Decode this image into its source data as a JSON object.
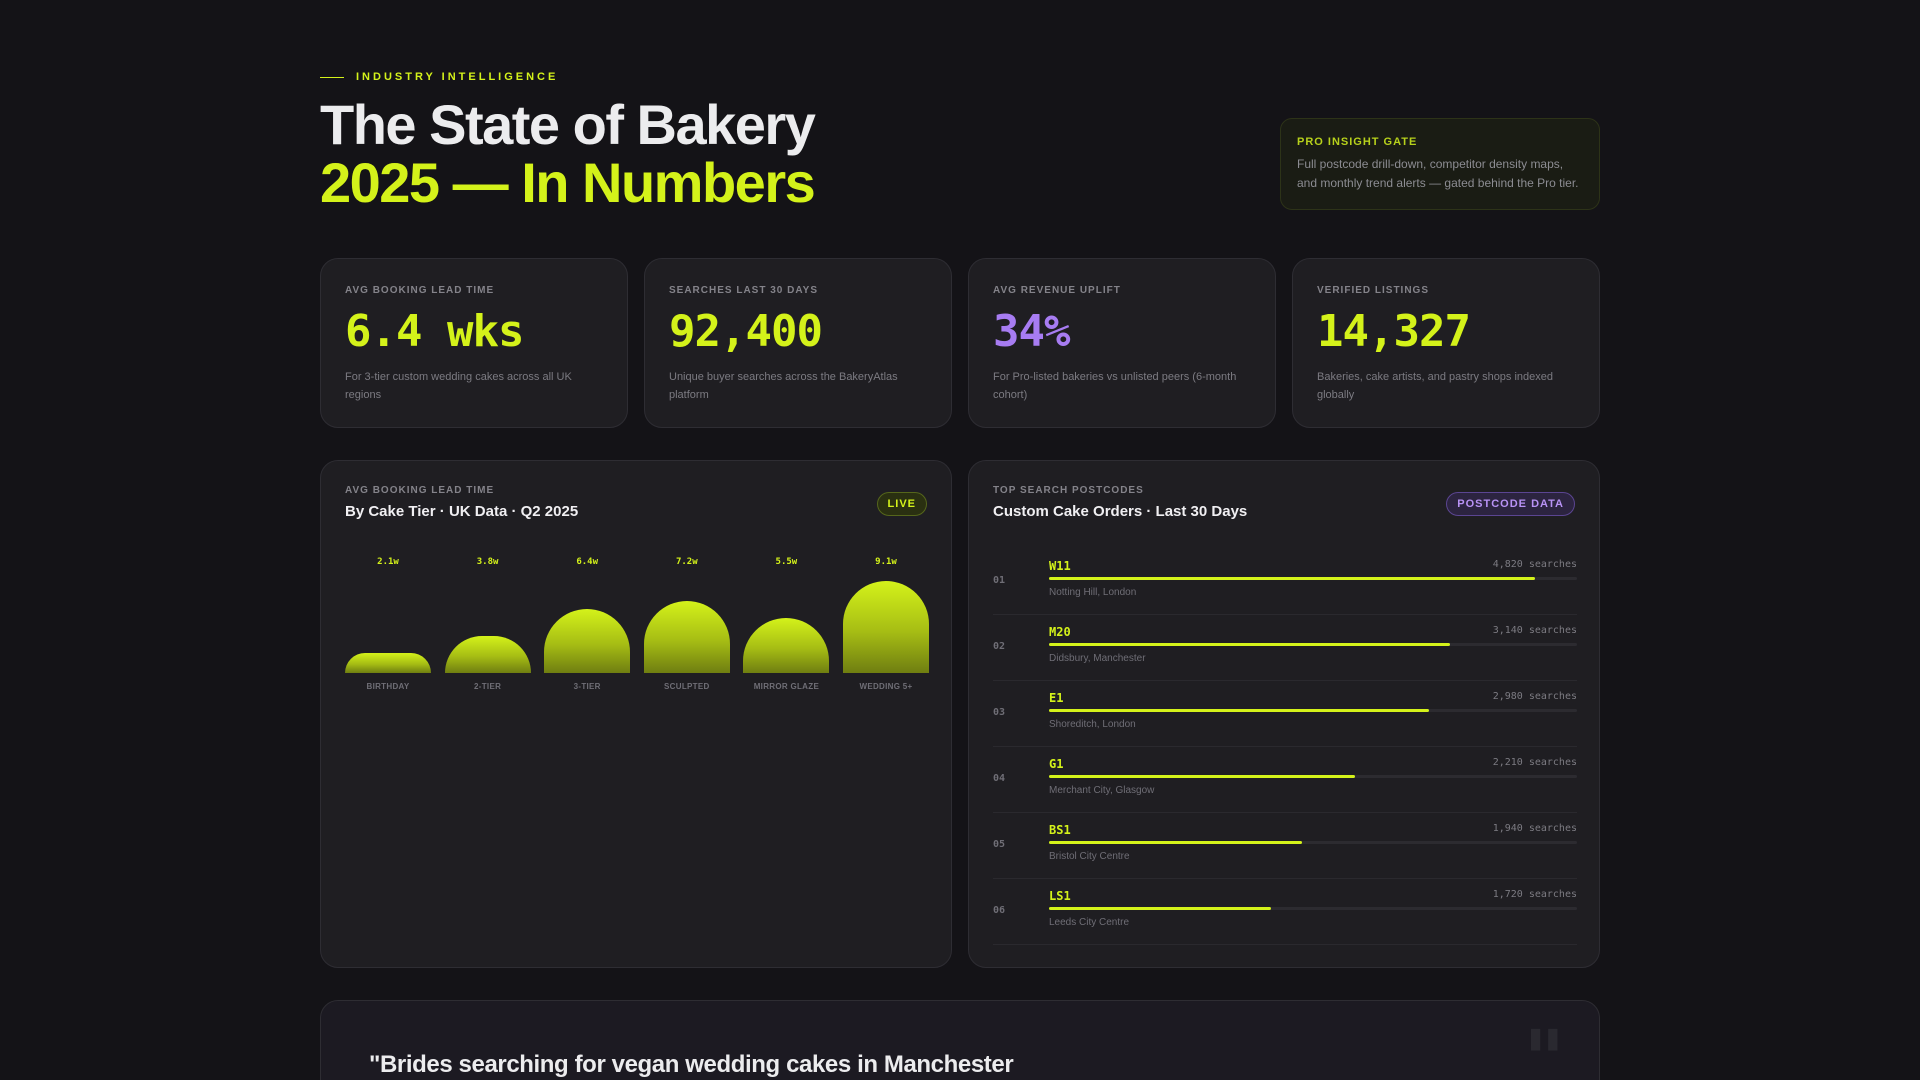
{
  "header": {
    "eyebrow": "INDUSTRY INTELLIGENCE",
    "title_line1": "The State of Bakery",
    "title_line2": "2025 — In Numbers"
  },
  "gate": {
    "title": "PRO INSIGHT GATE",
    "text": "Full postcode drill-down, competitor density maps, and monthly trend alerts — gated behind the Pro tier."
  },
  "stats": [
    {
      "label": "AVG BOOKING LEAD TIME",
      "value": "6.4 wks",
      "desc": "For 3-tier custom wedding cakes across all UK regions"
    },
    {
      "label": "SEARCHES LAST 30 DAYS",
      "value": "92,400",
      "desc": "Unique buyer searches across the BakeryAtlas platform"
    },
    {
      "label": "AVG REVENUE UPLIFT",
      "value": "34%",
      "desc": "For Pro-listed bakeries vs unlisted peers (6-month cohort)"
    },
    {
      "label": "VERIFIED LISTINGS",
      "value": "14,327",
      "desc": "Bakeries, cake artists, and pastry shops indexed globally"
    }
  ],
  "lead_panel": {
    "label": "AVG BOOKING LEAD TIME",
    "title": "By Cake Tier · UK Data · Q2 2025",
    "badge": "LIVE"
  },
  "chart_data": {
    "type": "bar",
    "categories": [
      "BIRTHDAY",
      "2-TIER",
      "3-TIER",
      "SCULPTED",
      "MIRROR GLAZE",
      "WEDDING 5+"
    ],
    "values": [
      2.1,
      3.8,
      6.4,
      7.2,
      5.5,
      9.1
    ],
    "value_labels": [
      "2.1w",
      "3.8w",
      "6.4w",
      "7.2w",
      "5.5w",
      "9.1w"
    ],
    "title": "",
    "xlabel": "",
    "ylabel": "",
    "ylim": [
      0,
      9.1
    ]
  },
  "postcode_panel": {
    "label": "TOP SEARCH POSTCODES",
    "title": "Custom Cake Orders · Last 30 Days",
    "badge": "POSTCODE DATA",
    "rows": [
      {
        "rank": "01",
        "code": "W11",
        "count": "4,820 searches",
        "area": "Notting Hill, London",
        "share": 0.92
      },
      {
        "rank": "02",
        "code": "M20",
        "count": "3,140 searches",
        "area": "Didsbury, Manchester",
        "share": 0.76
      },
      {
        "rank": "03",
        "code": "E1",
        "count": "2,980 searches",
        "area": "Shoreditch, London",
        "share": 0.72
      },
      {
        "rank": "04",
        "code": "G1",
        "count": "2,210 searches",
        "area": "Merchant City, Glasgow",
        "share": 0.58
      },
      {
        "rank": "05",
        "code": "BS1",
        "count": "1,940 searches",
        "area": "Bristol City Centre",
        "share": 0.48
      },
      {
        "rank": "06",
        "code": "LS1",
        "count": "1,720 searches",
        "area": "Leeds City Centre",
        "share": 0.42
      }
    ]
  },
  "quote": {
    "text": "\"Brides searching for vegan wedding cakes in Manchester",
    "mark": "\""
  },
  "colors": {
    "accent": "#d4f21a",
    "purple": "#a77cf2",
    "background": "#141317",
    "card": "#1f1e22"
  }
}
